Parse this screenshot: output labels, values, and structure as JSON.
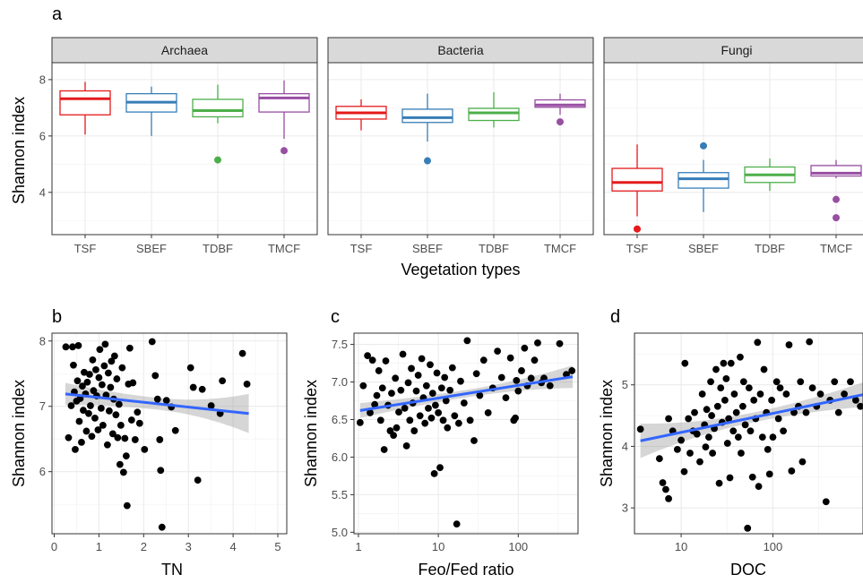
{
  "figure": {
    "panel_letters": [
      "a",
      "b",
      "c",
      "d"
    ]
  },
  "chart_data": [
    {
      "type": "box",
      "panel": "a",
      "xlabel": "Vegetation types",
      "ylabel": "Shannon index",
      "ylim": [
        2.5,
        8.6
      ],
      "yticks": [
        4,
        6,
        8
      ],
      "categories": [
        "TSF",
        "SBEF",
        "TDBF",
        "TMCF"
      ],
      "colors": {
        "TSF": "#e41a1c",
        "SBEF": "#377eb8",
        "TDBF": "#4daf4a",
        "TMCF": "#984ea3"
      },
      "grid": true,
      "facets": [
        {
          "name": "Archaea",
          "boxes": [
            {
              "category": "TSF",
              "min": 6.05,
              "q1": 6.75,
              "median": 7.32,
              "q3": 7.6,
              "max": 7.92,
              "outliers": []
            },
            {
              "category": "SBEF",
              "min": 6.0,
              "q1": 6.85,
              "median": 7.2,
              "q3": 7.5,
              "max": 7.75,
              "outliers": []
            },
            {
              "category": "TDBF",
              "min": 6.45,
              "q1": 6.68,
              "median": 6.9,
              "q3": 7.3,
              "max": 7.82,
              "outliers": [
                5.15
              ]
            },
            {
              "category": "TMCF",
              "min": 5.9,
              "q1": 6.85,
              "median": 7.35,
              "q3": 7.5,
              "max": 7.97,
              "outliers": [
                5.48
              ]
            }
          ]
        },
        {
          "name": "Bacteria",
          "boxes": [
            {
              "category": "TSF",
              "min": 6.2,
              "q1": 6.6,
              "median": 6.82,
              "q3": 7.05,
              "max": 7.3,
              "outliers": []
            },
            {
              "category": "SBEF",
              "min": 5.8,
              "q1": 6.48,
              "median": 6.65,
              "q3": 6.95,
              "max": 7.5,
              "outliers": [
                5.12
              ]
            },
            {
              "category": "TDBF",
              "min": 6.3,
              "q1": 6.55,
              "median": 6.82,
              "q3": 6.98,
              "max": 7.55,
              "outliers": []
            },
            {
              "category": "TMCF",
              "min": 6.75,
              "q1": 7.02,
              "median": 7.1,
              "q3": 7.28,
              "max": 7.5,
              "outliers": [
                6.5
              ]
            }
          ]
        },
        {
          "name": "Fungi",
          "boxes": [
            {
              "category": "TSF",
              "min": 3.15,
              "q1": 4.05,
              "median": 4.35,
              "q3": 4.85,
              "max": 5.7,
              "outliers": [
                2.7
              ]
            },
            {
              "category": "SBEF",
              "min": 3.3,
              "q1": 4.15,
              "median": 4.48,
              "q3": 4.7,
              "max": 5.15,
              "outliers": [
                5.65
              ]
            },
            {
              "category": "TDBF",
              "min": 4.05,
              "q1": 4.35,
              "median": 4.62,
              "q3": 4.9,
              "max": 5.2,
              "outliers": []
            },
            {
              "category": "TMCF",
              "min": 4.5,
              "q1": 4.58,
              "median": 4.68,
              "q3": 4.95,
              "max": 5.15,
              "outliers": [
                3.75,
                3.1
              ]
            }
          ]
        }
      ]
    },
    {
      "type": "scatter",
      "panel": "b",
      "xlabel": "TN",
      "ylabel": "Shannon index",
      "xscale": "linear",
      "xlim": [
        -0.05,
        5.2
      ],
      "ylim": [
        5.05,
        8.12
      ],
      "xticks": [
        0,
        1,
        2,
        3,
        4,
        5
      ],
      "yticks": [
        6,
        7,
        8
      ],
      "grid": true,
      "trend": {
        "x": [
          0.25,
          4.35
        ],
        "y": [
          7.19,
          6.89
        ],
        "band_halfwidth": [
          0.17,
          0.09,
          0.3
        ]
      },
      "points": [
        [
          0.26,
          7.91
        ],
        [
          0.32,
          6.52
        ],
        [
          0.38,
          7.01
        ],
        [
          0.41,
          7.91
        ],
        [
          0.43,
          7.63
        ],
        [
          0.45,
          7.22
        ],
        [
          0.47,
          6.34
        ],
        [
          0.5,
          7.08
        ],
        [
          0.52,
          7.39
        ],
        [
          0.54,
          7.93
        ],
        [
          0.56,
          6.77
        ],
        [
          0.58,
          7.12
        ],
        [
          0.61,
          6.45
        ],
        [
          0.63,
          7.31
        ],
        [
          0.65,
          6.94
        ],
        [
          0.67,
          7.52
        ],
        [
          0.7,
          7.19
        ],
        [
          0.72,
          6.62
        ],
        [
          0.74,
          7.37
        ],
        [
          0.77,
          6.89
        ],
        [
          0.79,
          7.49
        ],
        [
          0.81,
          7.01
        ],
        [
          0.84,
          6.54
        ],
        [
          0.86,
          7.71
        ],
        [
          0.88,
          7.24
        ],
        [
          0.91,
          6.82
        ],
        [
          0.93,
          7.56
        ],
        [
          0.95,
          7.16
        ],
        [
          0.98,
          6.64
        ],
        [
          1.0,
          7.44
        ],
        [
          1.02,
          7.87
        ],
        [
          1.05,
          6.97
        ],
        [
          1.07,
          7.33
        ],
        [
          1.09,
          6.71
        ],
        [
          1.12,
          7.62
        ],
        [
          1.14,
          7.95
        ],
        [
          1.16,
          7.17
        ],
        [
          1.19,
          6.41
        ],
        [
          1.21,
          7.51
        ],
        [
          1.23,
          6.93
        ],
        [
          1.26,
          7.29
        ],
        [
          1.28,
          7.69
        ],
        [
          1.31,
          6.58
        ],
        [
          1.33,
          7.11
        ],
        [
          1.35,
          7.77
        ],
        [
          1.38,
          6.87
        ],
        [
          1.4,
          7.42
        ],
        [
          1.42,
          6.52
        ],
        [
          1.45,
          7.03
        ],
        [
          1.47,
          6.11
        ],
        [
          1.49,
          6.71
        ],
        [
          1.52,
          7.59
        ],
        [
          1.55,
          5.99
        ],
        [
          1.58,
          6.51
        ],
        [
          1.61,
          6.24
        ],
        [
          1.63,
          5.48
        ],
        [
          1.66,
          7.34
        ],
        [
          1.69,
          7.89
        ],
        [
          1.73,
          6.79
        ],
        [
          1.76,
          7.36
        ],
        [
          1.81,
          6.49
        ],
        [
          1.86,
          6.91
        ],
        [
          1.91,
          6.74
        ],
        [
          2.02,
          6.34
        ],
        [
          2.19,
          7.99
        ],
        [
          2.26,
          7.47
        ],
        [
          2.31,
          7.11
        ],
        [
          2.36,
          6.49
        ],
        [
          2.38,
          6.02
        ],
        [
          2.41,
          5.15
        ],
        [
          2.51,
          7.09
        ],
        [
          2.62,
          6.99
        ],
        [
          2.71,
          6.63
        ],
        [
          3.05,
          7.59
        ],
        [
          3.11,
          7.29
        ],
        [
          3.21,
          5.87
        ],
        [
          3.31,
          7.26
        ],
        [
          3.51,
          7.01
        ],
        [
          3.71,
          6.89
        ],
        [
          3.76,
          7.39
        ],
        [
          4.21,
          7.81
        ],
        [
          4.31,
          7.34
        ]
      ]
    },
    {
      "type": "scatter",
      "panel": "c",
      "xlabel": "Feo/Fed ratio",
      "ylabel": "Shannon index",
      "xscale": "log10",
      "xlim": [
        0.88,
        560
      ],
      "ylim": [
        4.98,
        7.65
      ],
      "xticks": [
        1,
        10,
        100
      ],
      "yticks": [
        5.0,
        5.5,
        6.0,
        6.5,
        7.0,
        7.5
      ],
      "ytick_labels": [
        "5.0",
        "5.5",
        "6.0",
        "6.5",
        "7.0",
        "7.5"
      ],
      "grid": true,
      "trend": {
        "x": [
          1.05,
          480
        ],
        "y": [
          6.62,
          7.07
        ],
        "band_halfwidth": [
          0.1,
          0.05,
          0.15
        ]
      },
      "points": [
        [
          1.05,
          6.46
        ],
        [
          1.15,
          6.95
        ],
        [
          1.3,
          7.35
        ],
        [
          1.4,
          6.59
        ],
        [
          1.5,
          7.29
        ],
        [
          1.6,
          6.7
        ],
        [
          1.7,
          6.82
        ],
        [
          1.8,
          7.15
        ],
        [
          1.9,
          6.49
        ],
        [
          2.0,
          6.92
        ],
        [
          2.1,
          6.1
        ],
        [
          2.2,
          7.28
        ],
        [
          2.35,
          6.69
        ],
        [
          2.5,
          6.35
        ],
        [
          2.6,
          6.85
        ],
        [
          2.75,
          6.29
        ],
        [
          2.9,
          7.05
        ],
        [
          3.0,
          6.39
        ],
        [
          3.2,
          6.6
        ],
        [
          3.4,
          6.89
        ],
        [
          3.6,
          7.37
        ],
        [
          3.8,
          6.65
        ],
        [
          4.0,
          6.15
        ],
        [
          4.2,
          6.99
        ],
        [
          4.4,
          6.49
        ],
        [
          4.6,
          7.18
        ],
        [
          4.8,
          6.72
        ],
        [
          5.0,
          6.35
        ],
        [
          5.3,
          6.88
        ],
        [
          5.6,
          7.09
        ],
        [
          5.9,
          6.55
        ],
        [
          6.2,
          7.31
        ],
        [
          6.5,
          6.79
        ],
        [
          6.8,
          6.45
        ],
        [
          7.1,
          6.95
        ],
        [
          7.5,
          6.65
        ],
        [
          7.9,
          7.23
        ],
        [
          8.2,
          6.52
        ],
        [
          8.5,
          6.85
        ],
        [
          8.9,
          5.78
        ],
        [
          9.2,
          6.69
        ],
        [
          9.6,
          7.12
        ],
        [
          10.0,
          6.59
        ],
        [
          10.5,
          5.86
        ],
        [
          11.0,
          6.92
        ],
        [
          11.5,
          6.49
        ],
        [
          12.0,
          7.06
        ],
        [
          12.5,
          6.75
        ],
        [
          13.0,
          6.39
        ],
        [
          14.0,
          6.89
        ],
        [
          15.0,
          7.19
        ],
        [
          16.0,
          6.55
        ],
        [
          17.0,
          5.11
        ],
        [
          18.0,
          6.45
        ],
        [
          19.0,
          7.01
        ],
        [
          21.0,
          6.72
        ],
        [
          23.0,
          7.55
        ],
        [
          25.0,
          6.49
        ],
        [
          28.0,
          6.22
        ],
        [
          30.0,
          7.11
        ],
        [
          33.0,
          6.82
        ],
        [
          37.0,
          7.29
        ],
        [
          42.0,
          6.59
        ],
        [
          48.0,
          6.92
        ],
        [
          55.0,
          7.41
        ],
        [
          62.0,
          7.06
        ],
        [
          70.0,
          6.79
        ],
        [
          80.0,
          7.32
        ],
        [
          88.0,
          6.49
        ],
        [
          92.0,
          6.52
        ],
        [
          95.0,
          7.02
        ],
        [
          100.0,
          6.88
        ],
        [
          110.0,
          7.15
        ],
        [
          120.0,
          7.45
        ],
        [
          130.0,
          6.95
        ],
        [
          145.0,
          7.05
        ],
        [
          160.0,
          7.29
        ],
        [
          175.0,
          7.52
        ],
        [
          195.0,
          6.99
        ],
        [
          210.0,
          7.05
        ],
        [
          250.0,
          6.95
        ],
        [
          330.0,
          7.51
        ],
        [
          400.0,
          7.1
        ],
        [
          470.0,
          7.15
        ]
      ]
    },
    {
      "type": "scatter",
      "panel": "d",
      "xlabel": "DOC",
      "ylabel": "Shannon index",
      "xscale": "log10",
      "xlim": [
        3.1,
        960
      ],
      "ylim": [
        2.58,
        5.84
      ],
      "xticks": [
        10,
        100
      ],
      "yticks": [
        3,
        4,
        5
      ],
      "grid": true,
      "trend": {
        "x": [
          3.6,
          960
        ],
        "y": [
          4.09,
          4.84
        ],
        "band_halfwidth": [
          0.28,
          0.08,
          0.2
        ]
      },
      "points": [
        [
          3.6,
          4.28
        ],
        [
          5.8,
          3.8
        ],
        [
          6.3,
          3.41
        ],
        [
          6.8,
          3.3
        ],
        [
          7.3,
          4.45
        ],
        [
          7.3,
          3.15
        ],
        [
          8.1,
          4.25
        ],
        [
          9.1,
          3.95
        ],
        [
          10.0,
          4.1
        ],
        [
          10.8,
          3.59
        ],
        [
          11.0,
          5.35
        ],
        [
          12.0,
          4.45
        ],
        [
          12.5,
          3.89
        ],
        [
          13.5,
          4.25
        ],
        [
          14.0,
          4.55
        ],
        [
          14.9,
          4.2
        ],
        [
          16.0,
          3.75
        ],
        [
          17.0,
          4.85
        ],
        [
          18.0,
          4.35
        ],
        [
          18.5,
          3.99
        ],
        [
          19.0,
          4.6
        ],
        [
          20.0,
          4.15
        ],
        [
          21.0,
          5.05
        ],
        [
          21.5,
          4.5
        ],
        [
          22.0,
          3.89
        ],
        [
          23.0,
          4.29
        ],
        [
          24.0,
          5.25
        ],
        [
          25.0,
          4.65
        ],
        [
          26.0,
          3.4
        ],
        [
          27.0,
          4.95
        ],
        [
          28.0,
          4.39
        ],
        [
          29.0,
          5.35
        ],
        [
          30.0,
          4.75
        ],
        [
          31.0,
          5.1
        ],
        [
          32.0,
          4.05
        ],
        [
          33.0,
          4.45
        ],
        [
          34.0,
          3.49
        ],
        [
          35.0,
          5.35
        ],
        [
          37.0,
          4.25
        ],
        [
          38.0,
          4.85
        ],
        [
          40.0,
          4.55
        ],
        [
          42.0,
          4.15
        ],
        [
          44.0,
          5.45
        ],
        [
          45.0,
          3.89
        ],
        [
          47.0,
          4.65
        ],
        [
          48.0,
          5.05
        ],
        [
          50.0,
          4.35
        ],
        [
          53.0,
          2.67
        ],
        [
          55.0,
          4.95
        ],
        [
          57.0,
          4.25
        ],
        [
          60.0,
          3.5
        ],
        [
          62.0,
          4.75
        ],
        [
          65.0,
          4.45
        ],
        [
          68.0,
          5.69
        ],
        [
          70.0,
          3.35
        ],
        [
          73.0,
          4.85
        ],
        [
          77.0,
          4.15
        ],
        [
          80.0,
          5.25
        ],
        [
          85.0,
          4.55
        ],
        [
          88.0,
          3.95
        ],
        [
          92.0,
          3.55
        ],
        [
          97.0,
          4.75
        ],
        [
          100.0,
          4.15
        ],
        [
          110.0,
          5.05
        ],
        [
          115.0,
          4.45
        ],
        [
          120.0,
          4.95
        ],
        [
          130.0,
          4.25
        ],
        [
          140.0,
          4.85
        ],
        [
          150.0,
          5.65
        ],
        [
          160.0,
          3.6
        ],
        [
          170.0,
          4.55
        ],
        [
          190.0,
          4.65
        ],
        [
          200.0,
          5.05
        ],
        [
          210.0,
          3.75
        ],
        [
          230.0,
          4.55
        ],
        [
          250.0,
          5.7
        ],
        [
          270.0,
          4.95
        ],
        [
          300.0,
          4.65
        ],
        [
          330.0,
          4.85
        ],
        [
          380.0,
          3.1
        ],
        [
          420.0,
          4.75
        ],
        [
          470.0,
          5.05
        ],
        [
          520.0,
          4.55
        ],
        [
          600.0,
          4.85
        ],
        [
          700.0,
          5.05
        ],
        [
          800.0,
          4.75
        ],
        [
          900.0,
          4.65
        ]
      ]
    }
  ]
}
